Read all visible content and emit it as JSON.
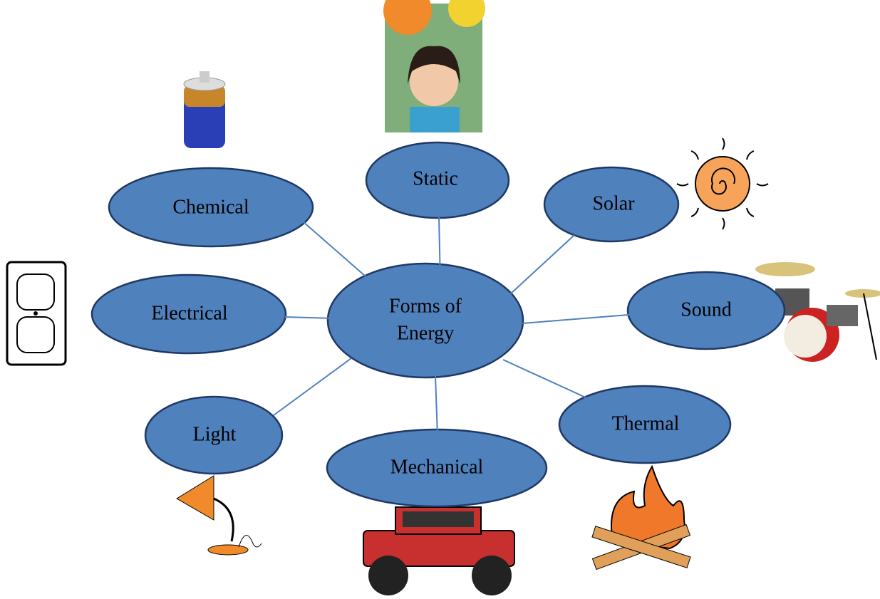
{
  "center": {
    "lines": [
      "Forms of",
      "Energy"
    ]
  },
  "nodes": [
    {
      "label": "Static"
    },
    {
      "label": "Chemical"
    },
    {
      "label": "Solar"
    },
    {
      "label": "Electrical"
    },
    {
      "label": "Sound"
    },
    {
      "label": "Light"
    },
    {
      "label": "Thermal"
    },
    {
      "label": "Mechanical"
    }
  ]
}
